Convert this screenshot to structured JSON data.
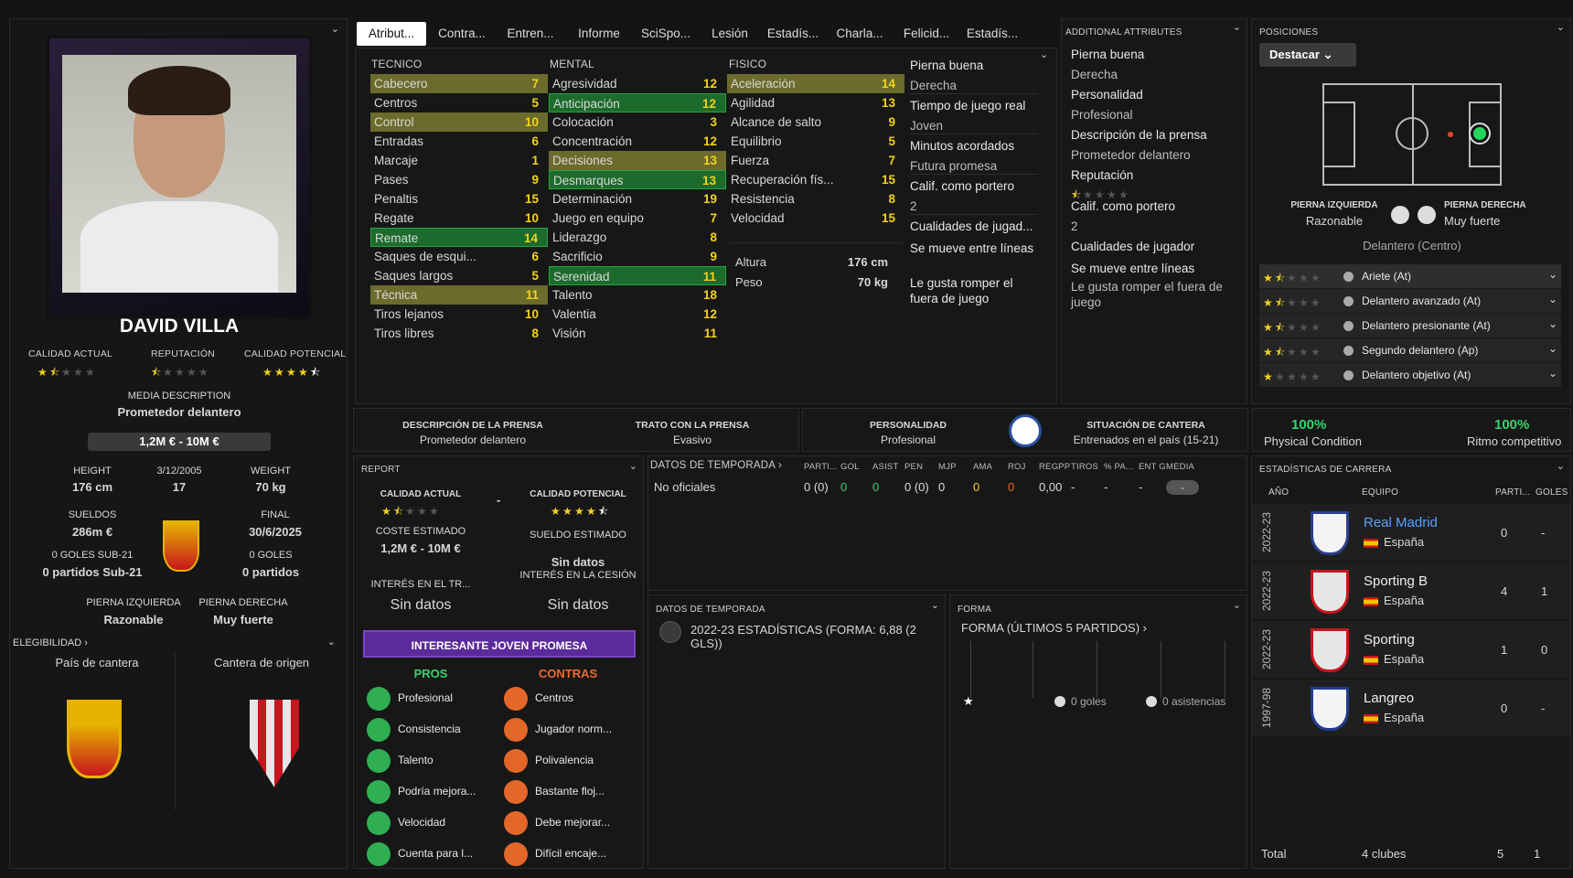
{
  "player": {
    "name": "DAVID VILLA",
    "ca_label": "CALIDAD ACTUAL",
    "rep_label": "REPUTACIÓN",
    "pa_label": "CALIDAD POTENCIAL",
    "ca_stars": 1.5,
    "rep_stars": 0.5,
    "pa_stars": 4.5,
    "media_label": "MEDIA DESCRIPTION",
    "media_value": "Prometedor delantero",
    "value_range": "1,2M € - 10M €",
    "height_label": "HEIGHT",
    "height": "176 cm",
    "dob": "3/12/2005",
    "age": "17",
    "weight_label": "WEIGHT",
    "weight": "70 kg",
    "wages_label": "SUELDOS",
    "wages": "286m €",
    "final_label": "FINAL",
    "final": "30/6/2025",
    "u21_goals": "0 GOLES SUB-21",
    "u21_matches": "0 partidos Sub-21",
    "goals": "0 GOLES",
    "matches": "0 partidos",
    "left_foot_label": "PIERNA IZQUIERDA",
    "left_foot": "Razonable",
    "right_foot_label": "PIERNA DERECHA",
    "right_foot": "Muy fuerte",
    "eligibility": "ELEGIBILIDAD",
    "eligibility_chev": "›",
    "nation_label": "País de cantera",
    "origin_label": "Cantera de origen",
    "menu_chev": "⌄"
  },
  "tabs": [
    "Atribut...",
    "Contra...",
    "Entren...",
    "Informe",
    "SciSpo...",
    "Lesión",
    "Estadís...",
    "Charla...",
    "Felicid...",
    "Estadís..."
  ],
  "tecnico": {
    "title": "TECNICO",
    "rows": [
      [
        "Cabecero",
        "7",
        "o"
      ],
      [
        "Centros",
        "5",
        ""
      ],
      [
        "Control",
        "10",
        "o"
      ],
      [
        "Entradas",
        "6",
        ""
      ],
      [
        "Marcaje",
        "1",
        ""
      ],
      [
        "Pases",
        "9",
        ""
      ],
      [
        "Penaltis",
        "15",
        ""
      ],
      [
        "Regate",
        "10",
        ""
      ],
      [
        "Remate",
        "14",
        "g"
      ],
      [
        "Saques de esqui...",
        "6",
        ""
      ],
      [
        "Saques largos",
        "5",
        ""
      ],
      [
        "Técnica",
        "11",
        "o"
      ],
      [
        "Tiros lejanos",
        "10",
        ""
      ],
      [
        "Tiros libres",
        "8",
        ""
      ]
    ]
  },
  "mental": {
    "title": "MENTAL",
    "rows": [
      [
        "Agresividad",
        "12",
        ""
      ],
      [
        "Anticipación",
        "12",
        "g"
      ],
      [
        "Colocación",
        "3",
        ""
      ],
      [
        "Concentración",
        "12",
        ""
      ],
      [
        "Decisiones",
        "13",
        "o"
      ],
      [
        "Desmarques",
        "13",
        "g"
      ],
      [
        "Determinación",
        "19",
        ""
      ],
      [
        "Juego en equipo",
        "7",
        ""
      ],
      [
        "Liderazgo",
        "8",
        ""
      ],
      [
        "Sacrificio",
        "9",
        ""
      ],
      [
        "Serenidad",
        "11",
        "g"
      ],
      [
        "Talento",
        "18",
        ""
      ],
      [
        "Valentia",
        "12",
        ""
      ],
      [
        "Visión",
        "11",
        ""
      ]
    ]
  },
  "fisico": {
    "title": "FISICO",
    "rows": [
      [
        "Aceleración",
        "14",
        "o"
      ],
      [
        "Agilidad",
        "13",
        ""
      ],
      [
        "Alcance de salto",
        "9",
        ""
      ],
      [
        "Equilibrio",
        "5",
        ""
      ],
      [
        "Fuerza",
        "7",
        ""
      ],
      [
        "Recuperación fís...",
        "15",
        ""
      ],
      [
        "Resistencia",
        "8",
        ""
      ],
      [
        "Velocidad",
        "15",
        ""
      ]
    ],
    "altura_label": "Altura",
    "altura": "176 cm",
    "peso_label": "Peso",
    "peso": "70 kg"
  },
  "extras": [
    "Pierna buena",
    "Derecha",
    "Tiempo de juego real",
    "Joven",
    "Minutos acordados",
    "Futura promesa",
    "Calif. como portero",
    "2",
    "Cualidades de jugad...",
    "Se mueve entre líneas",
    "Le gusta romper el fuera de juego"
  ],
  "additional": {
    "title": "ADDITIONAL ATTRIBUTES",
    "items": [
      "Pierna buena",
      "Derecha",
      "Personalidad",
      "Profesional",
      "Descripción de la prensa",
      "Prometedor delantero",
      "Reputación",
      "",
      "Calif. como portero",
      "2",
      "Cualidades de jugador",
      "Se mueve entre líneas",
      "Le gusta romper el fuera de juego"
    ]
  },
  "positions": {
    "title": "POSICIONES",
    "button": "Destacar",
    "lf_label": "PIERNA IZQUIERDA",
    "lf": "Razonable",
    "rf_label": "PIERNA DERECHA",
    "rf": "Muy fuerte",
    "main": "Delantero (Centro)",
    "roles": [
      [
        "Ariete (At)",
        1.5
      ],
      [
        "Delantero avanzado (At)",
        1.5
      ],
      [
        "Delantero presionante (At)",
        1.5
      ],
      [
        "Segundo delantero (Ap)",
        1.5
      ],
      [
        "Delantero objetivo (At)",
        1
      ]
    ]
  },
  "press": {
    "desc_label": "DESCRIPCIÓN DE LA PRENSA",
    "desc": "Prometedor delantero",
    "trato_label": "TRATO CON LA PRENSA",
    "trato": "Evasivo",
    "pers_label": "PERSONALIDAD",
    "pers": "Profesional",
    "cantera_label": "SITUACIÓN DE CANTERA",
    "cantera": "Entrenados en el país (15-21)"
  },
  "condition": {
    "pc": "100%",
    "pc_label": "Physical Condition",
    "rc": "100%",
    "rc_label": "Ritmo competitivo"
  },
  "report": {
    "title": "REPORT",
    "ca": "CALIDAD ACTUAL",
    "pa": "CALIDAD POTENCIAL",
    "dash": "-",
    "cost_label": "COSTE ESTIMADO",
    "cost": "1,2M € - 10M €",
    "wage_label": "SUELDO ESTIMADO",
    "wage": "Sin datos",
    "int_tr": "INTERÉS EN EL TR...",
    "int_tr_v": "Sin datos",
    "int_ces": "INTERÉS EN LA CESIÓN",
    "int_ces_v": "Sin datos",
    "banner": "INTERESANTE JOVEN PROMESA",
    "pros_title": "PROS",
    "contras_title": "CONTRAS",
    "pros": [
      "Profesional",
      "Consistencia",
      "Talento",
      "Podría mejora...",
      "Velocidad",
      "Cuenta para l..."
    ],
    "contras": [
      "Centros",
      "Jugador norm...",
      "Polivalencia",
      "Bastante floj...",
      "Debe mejorar...",
      "Difícil encaje..."
    ]
  },
  "season": {
    "title": "DATOS DE TEMPORADA",
    "chev": "›",
    "cols": [
      "PARTI...",
      "GOL",
      "ASIST",
      "PEN",
      "MJP",
      "AMA",
      "ROJ",
      "REGPP",
      "TIROS",
      "% PA...",
      "ENT G",
      "MEDIA"
    ],
    "row_label": "No oficiales",
    "vals": [
      "0 (0)",
      "0",
      "0",
      "0 (0)",
      "0",
      "0",
      "0",
      "0,00",
      "-",
      "-",
      "-",
      "-"
    ]
  },
  "season2": {
    "title": "DATOS DE TEMPORADA",
    "text": "2022-23 ESTADÍSTICAS (FORMA: 6,88 (2 GLS))"
  },
  "form": {
    "title": "FORMA",
    "sub": "FORMA (ÚLTIMOS 5 PARTIDOS)",
    "goals": "0 goles",
    "assists": "0 asistencias"
  },
  "career": {
    "title": "ESTADÍSTICAS DE CARRERA",
    "col_year": "AÑO",
    "col_team": "EQUIPO",
    "col_apps": "PARTI...",
    "col_goals": "GOLES",
    "rows": [
      [
        "2022-23",
        "Real Madrid",
        "España",
        "0",
        "-"
      ],
      [
        "2022-23",
        "Sporting B",
        "España",
        "4",
        "1"
      ],
      [
        "2022-23",
        "Sporting",
        "España",
        "1",
        "0"
      ],
      [
        "1997-98",
        "Langreo",
        "España",
        "0",
        "-"
      ]
    ],
    "total_label": "Total",
    "total_clubs": "4 clubes",
    "total_apps": "5",
    "total_goals": "1"
  },
  "colors": {
    "accent_yellow": "#f2d31b",
    "highlight_green": "#1d6b2c",
    "highlight_olive": "#6b6b2c",
    "banner_purple": "#5b2a9b"
  }
}
